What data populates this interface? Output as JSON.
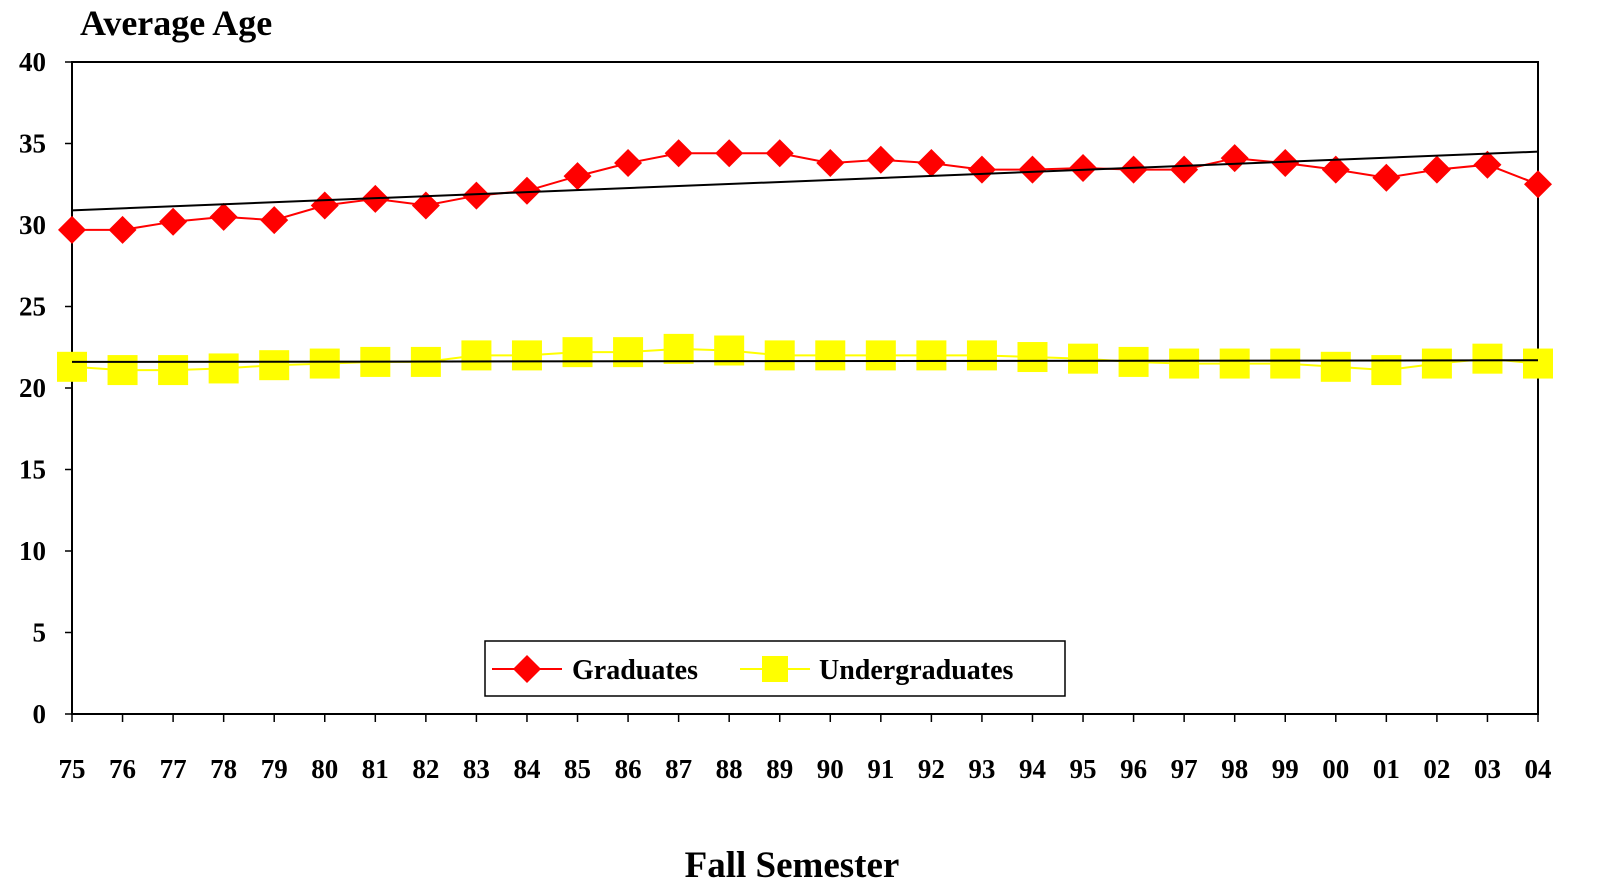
{
  "chart_data": {
    "type": "line",
    "ylabel": "Average Age",
    "xlabel": "Fall Semester",
    "categories": [
      "75",
      "76",
      "77",
      "78",
      "79",
      "80",
      "81",
      "82",
      "83",
      "84",
      "85",
      "86",
      "87",
      "88",
      "89",
      "90",
      "91",
      "92",
      "93",
      "94",
      "95",
      "96",
      "97",
      "98",
      "99",
      "00",
      "01",
      "02",
      "03",
      "04"
    ],
    "ylim": [
      0,
      40
    ],
    "yticks": [
      "0",
      "5",
      "10",
      "15",
      "20",
      "25",
      "30",
      "35",
      "40"
    ],
    "ytick_values": [
      0,
      5,
      10,
      15,
      20,
      25,
      30,
      35,
      40
    ],
    "grid": false,
    "legend_position": "bottom-center",
    "series": [
      {
        "name": "Graduates",
        "color": "#ff0000",
        "marker": "diamond",
        "values": [
          29.7,
          29.7,
          30.2,
          30.5,
          30.3,
          31.2,
          31.6,
          31.2,
          31.8,
          32.1,
          33.0,
          33.8,
          34.4,
          34.4,
          34.4,
          33.8,
          34.0,
          33.8,
          33.4,
          33.4,
          33.5,
          33.4,
          33.4,
          34.1,
          33.8,
          33.4,
          32.9,
          33.4,
          33.7,
          32.5
        ],
        "trendline": {
          "start": 30.9,
          "end": 34.5,
          "color": "#000000"
        }
      },
      {
        "name": "Undergraduates",
        "color": "#ffff00",
        "marker": "square",
        "values": [
          21.3,
          21.1,
          21.1,
          21.2,
          21.4,
          21.5,
          21.6,
          21.6,
          22.0,
          22.0,
          22.2,
          22.2,
          22.4,
          22.3,
          22.0,
          22.0,
          22.0,
          22.0,
          22.0,
          21.9,
          21.8,
          21.6,
          21.5,
          21.5,
          21.5,
          21.3,
          21.1,
          21.5,
          21.8,
          21.5
        ],
        "trendline": {
          "start": 21.6,
          "end": 21.7,
          "color": "#000000"
        }
      }
    ]
  }
}
